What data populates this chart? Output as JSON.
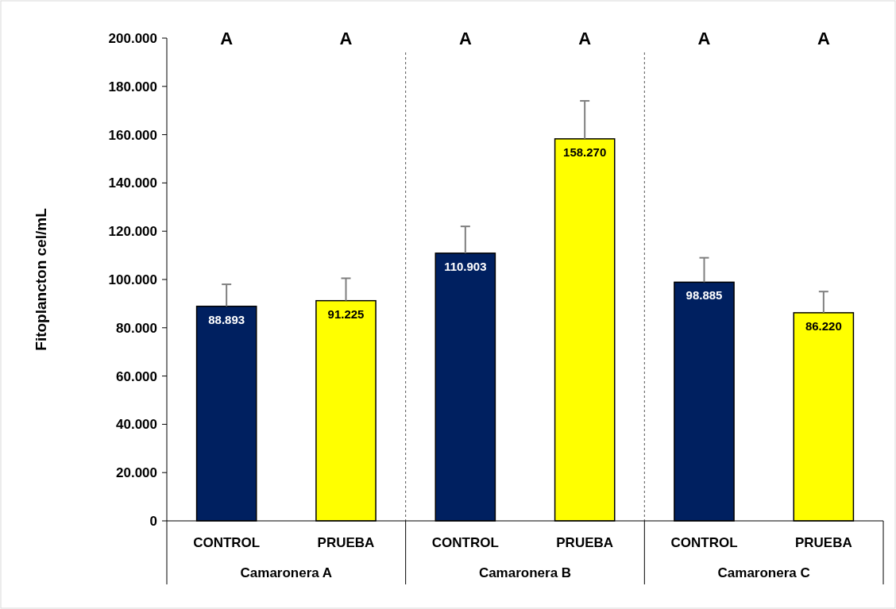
{
  "chart_data": {
    "type": "bar",
    "ylabel": "Fitoplancton cel/mL",
    "categories": [
      "CONTROL",
      "PRUEBA",
      "CONTROL",
      "PRUEBA",
      "CONTROL",
      "PRUEBA"
    ],
    "values": [
      88893,
      91225,
      110903,
      158270,
      98885,
      86220
    ],
    "colors": [
      "#002060",
      "#ffff00",
      "#002060",
      "#ffff00",
      "#002060",
      "#ffff00"
    ],
    "errors": [
      [
        88893,
        98000
      ],
      [
        91225,
        100500
      ],
      [
        110903,
        122000
      ],
      [
        158270,
        174000
      ],
      [
        98885,
        109000
      ],
      [
        86220,
        95000
      ]
    ],
    "value_labels": [
      "88.893",
      "91.225",
      "110.903",
      "158.270",
      "98.885",
      "86.220"
    ],
    "ylim": [
      0,
      200000
    ],
    "yticks": [
      0,
      {
        "value": 20000,
        "label": "20.000"
      },
      {
        "value": 40000,
        "label": "40.000"
      },
      {
        "value": 60000,
        "label": "60.000"
      },
      {
        "value": 80000,
        "label": "80.000"
      },
      {
        "value": 100000,
        "label": "100.000"
      },
      {
        "value": 120000,
        "label": "120.000"
      },
      {
        "value": 140000,
        "label": "140.000"
      },
      {
        "value": 160000,
        "label": "160.000"
      },
      {
        "value": 180000,
        "label": "180.000"
      },
      {
        "value": 200000,
        "label": "200.000"
      }
    ],
    "annotations": [
      "A",
      "A",
      "A",
      "A",
      "A",
      "A",
      "Camaronera A",
      "Camaronera B",
      "Camaronera C"
    ]
  }
}
